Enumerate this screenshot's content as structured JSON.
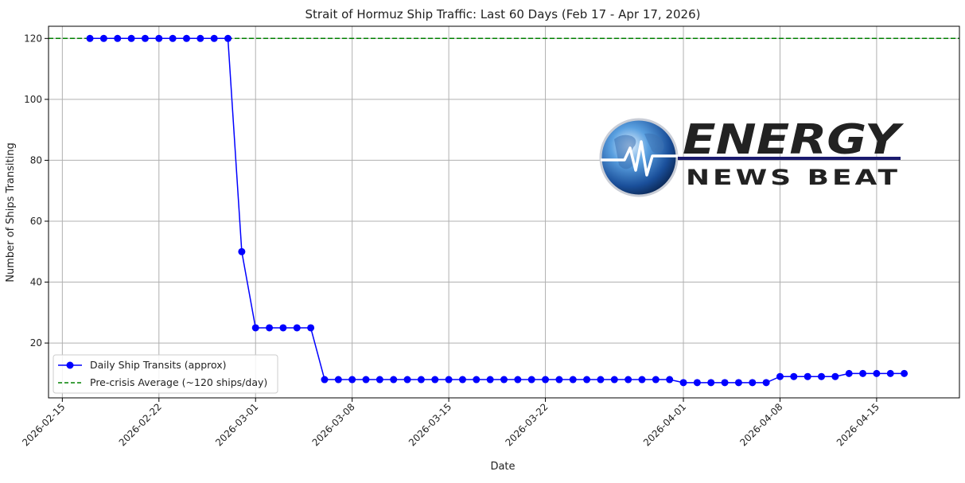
{
  "chart_data": {
    "type": "line",
    "title": "Strait of Hormuz Ship Traffic: Last 60 Days (Feb 17 - Apr 17, 2026)",
    "xlabel": "Date",
    "ylabel": "Number of Ships Transiting",
    "x_axis": {
      "type": "date",
      "range": [
        "2026-02-14",
        "2026-04-21"
      ],
      "ticks": [
        "2026-02-15",
        "2026-02-22",
        "2026-03-01",
        "2026-03-08",
        "2026-03-15",
        "2026-03-22",
        "2026-04-01",
        "2026-04-08",
        "2026-04-15"
      ]
    },
    "y_axis": {
      "range": [
        2,
        124
      ],
      "ticks": [
        20,
        40,
        60,
        80,
        100,
        120
      ]
    },
    "grid": true,
    "legend_position": "lower-left",
    "series": [
      {
        "name": "Daily Ship Transits (approx)",
        "color": "#0000ff",
        "marker": "circle",
        "style": "solid",
        "x": [
          "2026-02-17",
          "2026-02-18",
          "2026-02-19",
          "2026-02-20",
          "2026-02-21",
          "2026-02-22",
          "2026-02-23",
          "2026-02-24",
          "2026-02-25",
          "2026-02-26",
          "2026-02-27",
          "2026-02-28",
          "2026-03-01",
          "2026-03-02",
          "2026-03-03",
          "2026-03-04",
          "2026-03-05",
          "2026-03-06",
          "2026-03-07",
          "2026-03-08",
          "2026-03-09",
          "2026-03-10",
          "2026-03-11",
          "2026-03-12",
          "2026-03-13",
          "2026-03-14",
          "2026-03-15",
          "2026-03-16",
          "2026-03-17",
          "2026-03-18",
          "2026-03-19",
          "2026-03-20",
          "2026-03-21",
          "2026-03-22",
          "2026-03-23",
          "2026-03-24",
          "2026-03-25",
          "2026-03-26",
          "2026-03-27",
          "2026-03-28",
          "2026-03-29",
          "2026-03-30",
          "2026-03-31",
          "2026-04-01",
          "2026-04-02",
          "2026-04-03",
          "2026-04-04",
          "2026-04-05",
          "2026-04-06",
          "2026-04-07",
          "2026-04-08",
          "2026-04-09",
          "2026-04-10",
          "2026-04-11",
          "2026-04-12",
          "2026-04-13",
          "2026-04-14",
          "2026-04-15",
          "2026-04-16",
          "2026-04-17"
        ],
        "values": [
          120,
          120,
          120,
          120,
          120,
          120,
          120,
          120,
          120,
          120,
          120,
          50,
          25,
          25,
          25,
          25,
          25,
          8,
          8,
          8,
          8,
          8,
          8,
          8,
          8,
          8,
          8,
          8,
          8,
          8,
          8,
          8,
          8,
          8,
          8,
          8,
          8,
          8,
          8,
          8,
          8,
          8,
          8,
          7,
          7,
          7,
          7,
          7,
          7,
          7,
          9,
          9,
          9,
          9,
          9,
          10,
          10,
          10,
          10,
          10
        ]
      },
      {
        "name": "Pre-crisis Average (~120 ships/day)",
        "color": "#008000",
        "style": "dashed",
        "y": 120
      }
    ]
  },
  "watermark": {
    "line1": "ENERGY",
    "line2": "NEWS BEAT",
    "color": "#1a1a6e",
    "icon": "globe-heartbeat-icon"
  }
}
